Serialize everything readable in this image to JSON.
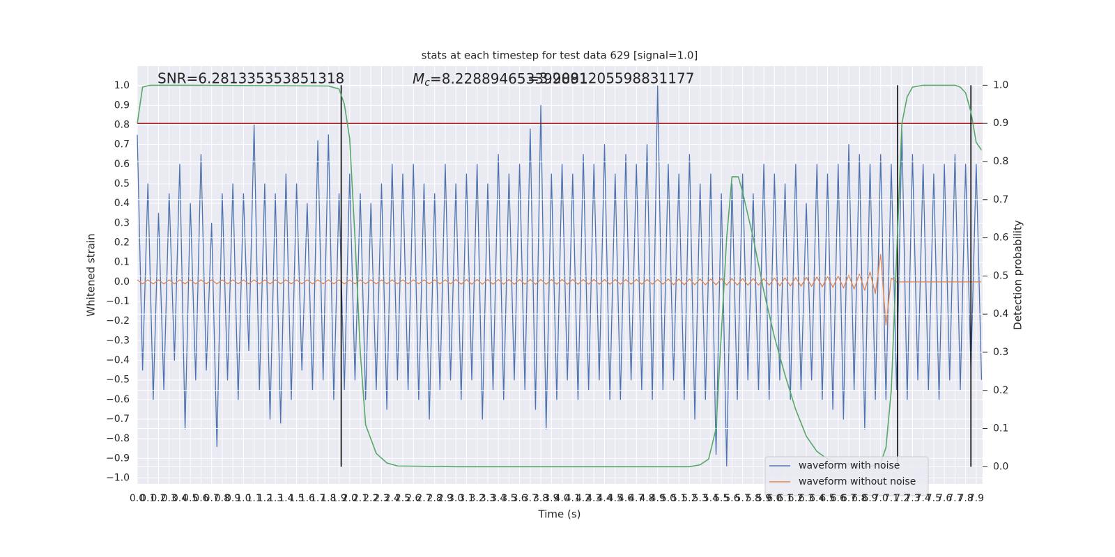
{
  "chart_data": {
    "type": "line",
    "title": "stats at each timestep for test data 629 [signal=1.0]",
    "xlabel": "Time (s)",
    "ylabel": "Whitened strain",
    "y2label": "Detection probability",
    "annotations": [
      {
        "text": "SNR=6.281335353851318"
      },
      {
        "symbol": "M",
        "subscript": "c",
        "text": "=8.228894653399891"
      },
      {
        "text": "=3.2081205598831177"
      }
    ],
    "grid": true,
    "legend": "lower right",
    "xlim": [
      0,
      7.96
    ],
    "ylim": [
      -1.03,
      1.1
    ],
    "y2lim": [
      -0.045,
      1.05
    ],
    "xticks": [
      {
        "value": 0,
        "label": "0.0"
      },
      0.1,
      0.2,
      0.3,
      0.4,
      0.5,
      0.6,
      0.7,
      0.8,
      0.9,
      {
        "value": 1,
        "label": "1.0"
      },
      1.1,
      1.2,
      1.3,
      1.4,
      1.5,
      1.6,
      1.7,
      1.8,
      1.9,
      {
        "value": 2,
        "label": "2.0"
      },
      2.1,
      2.2,
      2.3,
      2.4,
      2.5,
      2.6,
      2.7,
      2.8,
      2.9,
      {
        "value": 3,
        "label": "3.0"
      },
      3.1,
      3.2,
      3.3,
      3.4,
      3.5,
      3.6,
      3.7,
      3.8,
      3.9,
      {
        "value": 4,
        "label": "4.0"
      },
      4.1,
      4.2,
      4.3,
      4.4,
      4.5,
      4.6,
      4.7,
      4.8,
      4.9,
      {
        "value": 5,
        "label": "5.0"
      },
      5.1,
      5.2,
      5.3,
      5.4,
      5.5,
      5.6,
      5.7,
      5.8,
      5.9,
      {
        "value": 6,
        "label": "6.0"
      },
      6.1,
      6.2,
      6.3,
      6.4,
      6.5,
      6.6,
      6.7,
      6.8,
      6.9,
      {
        "value": 7,
        "label": "7.0"
      },
      7.1,
      7.2,
      7.3,
      7.4,
      7.5,
      7.6,
      7.7,
      7.8,
      7.9
    ],
    "yticks": [
      {
        "value": -1,
        "label": "−1.0"
      },
      {
        "value": -0.9,
        "label": "−0.9"
      },
      {
        "value": -0.8,
        "label": "−0.8"
      },
      {
        "value": -0.7,
        "label": "−0.7"
      },
      {
        "value": -0.6,
        "label": "−0.6"
      },
      {
        "value": -0.5,
        "label": "−0.5"
      },
      {
        "value": -0.4,
        "label": "−0.4"
      },
      {
        "value": -0.3,
        "label": "−0.3"
      },
      {
        "value": -0.2,
        "label": "−0.2"
      },
      {
        "value": -0.1,
        "label": "−0.1"
      },
      {
        "value": 0,
        "label": "0.0"
      },
      0.1,
      0.2,
      0.3,
      0.4,
      0.5,
      0.6,
      0.7,
      0.8,
      0.9,
      {
        "value": 1,
        "label": "1.0"
      }
    ],
    "y2ticks": [
      {
        "value": 0,
        "label": "0.0"
      },
      0.1,
      0.2,
      0.3,
      0.4,
      0.5,
      0.6,
      0.7,
      0.8,
      0.9,
      {
        "value": 1,
        "label": "1.0"
      }
    ],
    "hline": {
      "axis": "y2",
      "value": 0.9,
      "color": "#b22222"
    },
    "vlines": {
      "axis": "y2",
      "values": [
        1.92,
        7.16,
        7.85
      ],
      "span": [
        0,
        1
      ],
      "color": "#000000"
    },
    "x": [
      0,
      0.05,
      0.1,
      0.15,
      0.2,
      0.25,
      0.3,
      0.35,
      0.4,
      0.45,
      0.5,
      0.55,
      0.6,
      0.65,
      0.7,
      0.75,
      0.8,
      0.85,
      0.9,
      0.95,
      1,
      1.05,
      1.1,
      1.15,
      1.2,
      1.25,
      1.3,
      1.35,
      1.4,
      1.45,
      1.5,
      1.55,
      1.6,
      1.65,
      1.7,
      1.75,
      1.8,
      1.85,
      1.9,
      1.95,
      2,
      2.05,
      2.1,
      2.15,
      2.2,
      2.25,
      2.3,
      2.35,
      2.4,
      2.45,
      2.5,
      2.55,
      2.6,
      2.65,
      2.7,
      2.75,
      2.8,
      2.85,
      2.9,
      2.95,
      3,
      3.05,
      3.1,
      3.15,
      3.2,
      3.25,
      3.3,
      3.35,
      3.4,
      3.45,
      3.5,
      3.55,
      3.6,
      3.65,
      3.7,
      3.75,
      3.8,
      3.85,
      3.9,
      3.95,
      4,
      4.05,
      4.1,
      4.15,
      4.2,
      4.25,
      4.3,
      4.35,
      4.4,
      4.45,
      4.5,
      4.55,
      4.6,
      4.65,
      4.7,
      4.75,
      4.8,
      4.85,
      4.9,
      4.95,
      5,
      5.05,
      5.1,
      5.15,
      5.2,
      5.25,
      5.3,
      5.35,
      5.4,
      5.45,
      5.5,
      5.55,
      5.6,
      5.65,
      5.7,
      5.75,
      5.8,
      5.85,
      5.9,
      5.95,
      6,
      6.05,
      6.1,
      6.15,
      6.2,
      6.25,
      6.3,
      6.35,
      6.4,
      6.45,
      6.5,
      6.55,
      6.6,
      6.65,
      6.7,
      6.75,
      6.8,
      6.85,
      6.9,
      6.95,
      7,
      7.05,
      7.1,
      7.15,
      7.2,
      7.25,
      7.3,
      7.35,
      7.4,
      7.45,
      7.5,
      7.55,
      7.6,
      7.65,
      7.7,
      7.75,
      7.8,
      7.85,
      7.9,
      7.95
    ],
    "series": [
      {
        "name": "waveform with noise",
        "color": "#4c72b0",
        "values": [
          0.75,
          -0.45,
          0.5,
          -0.6,
          0.35,
          -0.55,
          0.45,
          -0.4,
          0.6,
          -0.75,
          0.4,
          -0.5,
          0.65,
          -0.45,
          0.3,
          -0.84,
          0.45,
          -0.5,
          0.5,
          -0.6,
          0.45,
          -0.35,
          0.8,
          -0.55,
          0.5,
          -0.7,
          0.45,
          -0.72,
          0.55,
          -0.6,
          0.5,
          -0.45,
          0.4,
          -0.55,
          0.72,
          -0.5,
          0.75,
          -0.6,
          0.45,
          -0.55,
          0.55,
          -0.5,
          0.45,
          -0.6,
          0.4,
          -0.55,
          0.5,
          -0.65,
          0.6,
          -0.5,
          0.55,
          -0.55,
          0.6,
          -0.6,
          0.5,
          -0.7,
          0.45,
          -0.55,
          0.6,
          -0.5,
          0.5,
          -0.6,
          0.55,
          -0.5,
          0.6,
          -0.7,
          0.5,
          -0.55,
          0.65,
          -0.6,
          0.55,
          -0.5,
          0.6,
          -0.55,
          0.78,
          -0.65,
          0.9,
          -0.75,
          0.55,
          -0.6,
          0.6,
          -0.5,
          0.55,
          -0.6,
          0.65,
          -0.55,
          0.6,
          -0.5,
          0.7,
          -0.6,
          0.55,
          -0.6,
          0.65,
          -0.5,
          0.6,
          -0.55,
          0.7,
          -0.6,
          1.0,
          -0.55,
          0.6,
          -0.5,
          0.55,
          -0.6,
          0.65,
          -0.7,
          0.5,
          -0.6,
          0.55,
          -0.88,
          0.45,
          -0.94,
          0.5,
          -0.6,
          0.55,
          -0.5,
          0.45,
          -0.55,
          0.6,
          -0.6,
          0.55,
          -0.5,
          0.5,
          -0.6,
          0.6,
          -0.55,
          0.4,
          -0.5,
          0.6,
          -0.6,
          0.55,
          -0.65,
          0.6,
          -0.7,
          0.7,
          -0.55,
          0.65,
          -0.75,
          0.6,
          -0.6,
          0.65,
          -0.6,
          0.6,
          -0.55,
          0.77,
          -0.6,
          0.65,
          -0.5,
          0.6,
          -0.55,
          0.55,
          -0.6,
          0.6,
          -0.5,
          0.65,
          -0.55,
          0.6,
          -0.45,
          0.6,
          -0.5
        ]
      },
      {
        "name": "waveform without noise",
        "color": "#dd8452",
        "values": [
          0.01,
          -0.01,
          0.01,
          -0.01,
          0.01,
          -0.01,
          0.01,
          -0.01,
          0.01,
          -0.01,
          0.01,
          -0.01,
          0.01,
          -0.01,
          0.01,
          -0.01,
          0.01,
          -0.01,
          0.01,
          -0.01,
          0.01,
          -0.01,
          0.01,
          -0.01,
          0.01,
          -0.01,
          0.01,
          -0.01,
          0.01,
          -0.01,
          0.01,
          -0.01,
          0.01,
          -0.01,
          0.01,
          -0.01,
          0.01,
          -0.01,
          0.01,
          -0.01,
          0.01,
          -0.01,
          0.01,
          -0.01,
          0.01,
          -0.01,
          0.01,
          -0.01,
          0.01,
          -0.01,
          0.01,
          -0.01,
          0.01,
          -0.01,
          0.01,
          -0.01,
          0.01,
          -0.01,
          0.01,
          -0.01,
          0.012,
          -0.012,
          0.012,
          -0.012,
          0.012,
          -0.012,
          0.012,
          -0.012,
          0.012,
          -0.012,
          0.012,
          -0.012,
          0.012,
          -0.012,
          0.012,
          -0.012,
          0.012,
          -0.012,
          0.012,
          -0.012,
          0.012,
          -0.012,
          0.012,
          -0.012,
          0.012,
          -0.012,
          0.012,
          -0.012,
          0.012,
          -0.012,
          0.012,
          -0.012,
          0.012,
          -0.012,
          0.012,
          -0.012,
          0.012,
          -0.012,
          0.012,
          -0.012,
          0.015,
          -0.015,
          0.015,
          -0.015,
          0.015,
          -0.015,
          0.015,
          -0.015,
          0.015,
          -0.015,
          0.017,
          -0.017,
          0.017,
          -0.017,
          0.017,
          -0.017,
          0.017,
          -0.017,
          0.017,
          -0.017,
          0.02,
          -0.02,
          0.021,
          -0.021,
          0.022,
          -0.022,
          0.023,
          -0.023,
          0.025,
          -0.025,
          0.027,
          -0.028,
          0.03,
          -0.031,
          0.034,
          -0.036,
          0.04,
          -0.043,
          0.05,
          -0.06,
          0.14,
          -0.22,
          0.02,
          0,
          0,
          0,
          0,
          0,
          0,
          0,
          0,
          0,
          0,
          0,
          0,
          0,
          0,
          0,
          0,
          0
        ]
      },
      {
        "name": null,
        "axis": "y2",
        "color": "#55a868",
        "x": [
          0,
          0.05,
          0.12,
          0.5,
          1.8,
          1.9,
          1.95,
          2.0,
          2.05,
          2.1,
          2.15,
          2.25,
          2.35,
          2.45,
          3.0,
          5.2,
          5.3,
          5.38,
          5.45,
          5.5,
          5.55,
          5.6,
          5.66,
          5.7,
          5.8,
          5.9,
          6.0,
          6.1,
          6.2,
          6.3,
          6.4,
          6.5,
          6.6,
          6.9,
          7.0,
          7.05,
          7.1,
          7.15,
          7.2,
          7.25,
          7.3,
          7.4,
          7.7,
          7.75,
          7.8,
          7.85,
          7.9,
          7.95
        ],
        "values": [
          0.9,
          0.995,
          1.0,
          1.0,
          0.998,
          0.99,
          0.95,
          0.86,
          0.6,
          0.3,
          0.11,
          0.035,
          0.01,
          0.002,
          0.0,
          0.0,
          0.005,
          0.02,
          0.1,
          0.35,
          0.6,
          0.76,
          0.76,
          0.72,
          0.6,
          0.46,
          0.34,
          0.24,
          0.15,
          0.08,
          0.04,
          0.02,
          0.01,
          0.0,
          0.01,
          0.05,
          0.2,
          0.55,
          0.9,
          0.97,
          0.995,
          1.0,
          1.0,
          0.995,
          0.98,
          0.93,
          0.85,
          0.83
        ]
      }
    ]
  }
}
